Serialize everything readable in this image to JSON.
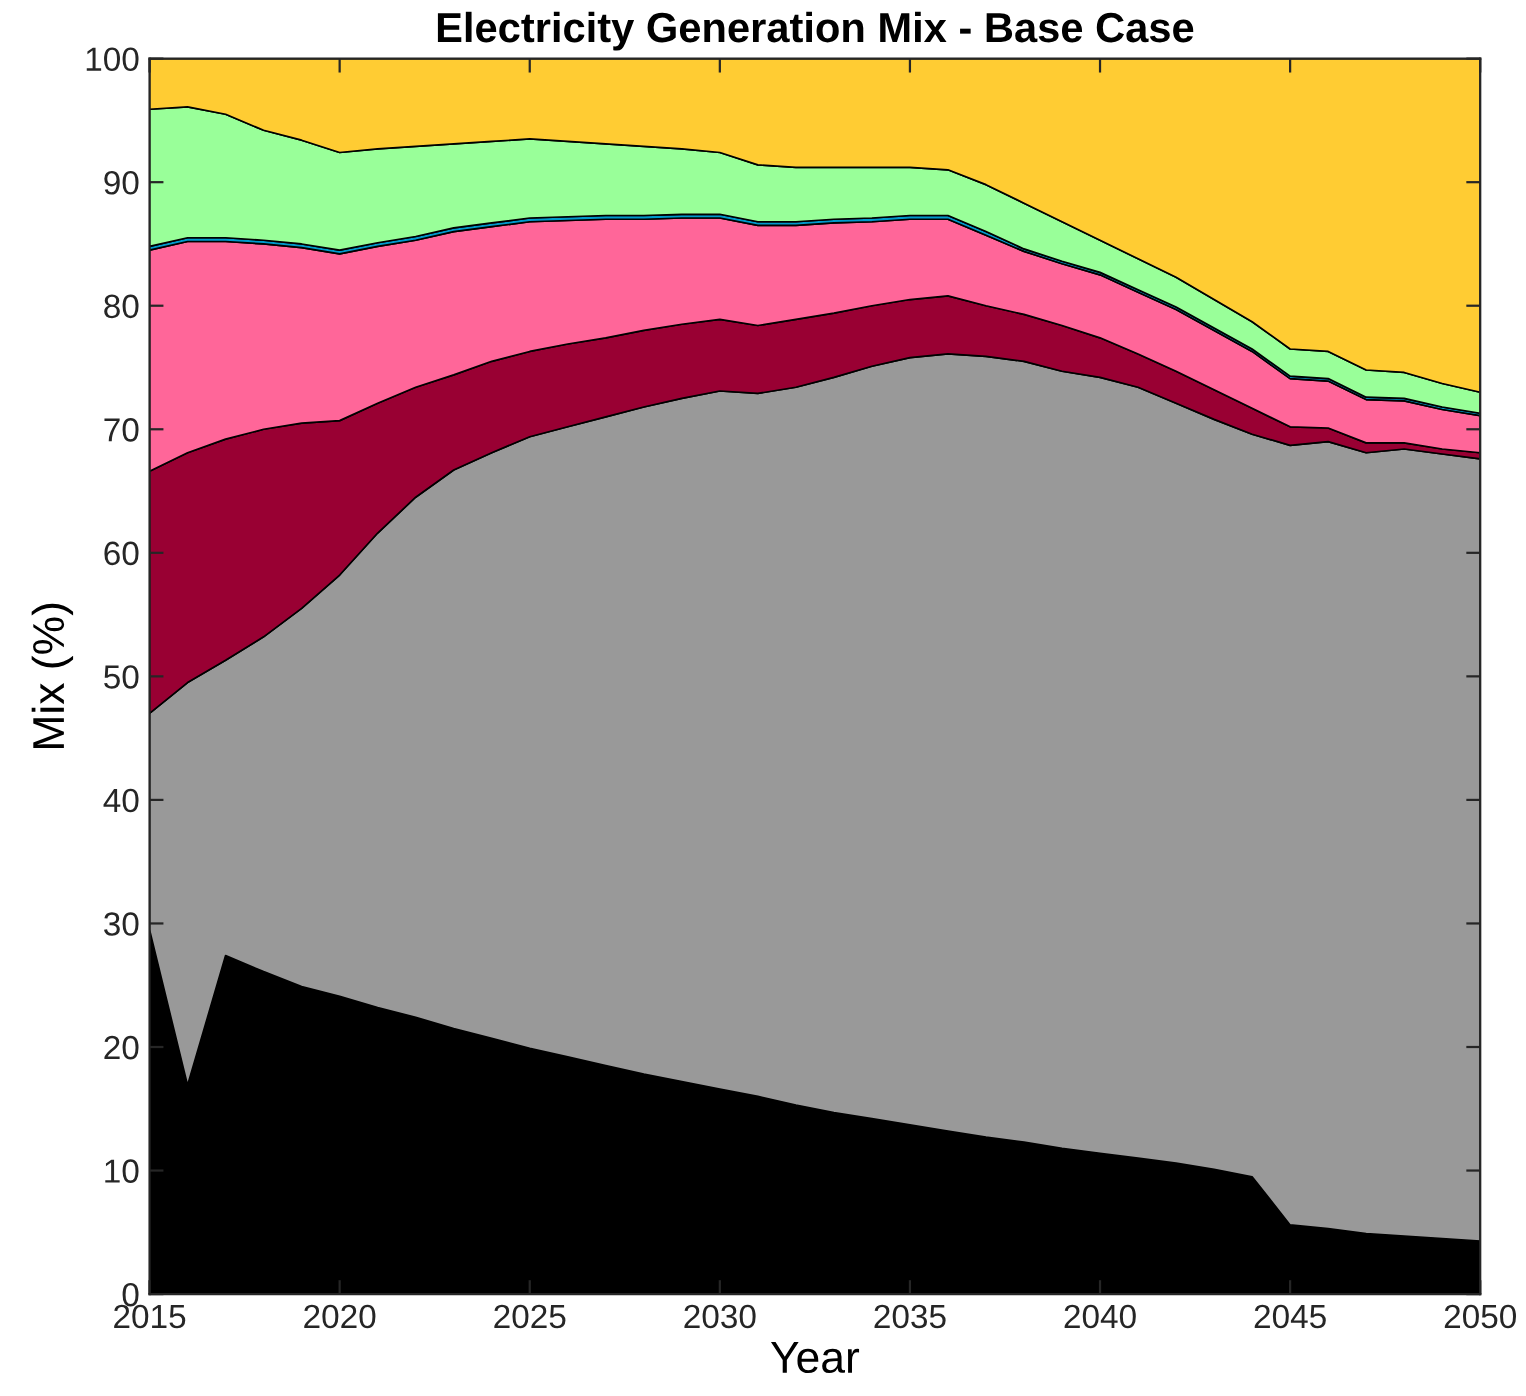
{
  "chart_data": {
    "type": "area",
    "stacked": true,
    "title": "Electricity Generation Mix - Base Case",
    "xlabel": "Year",
    "ylabel": "Mix (%)",
    "x": [
      2015,
      2016,
      2017,
      2018,
      2019,
      2020,
      2021,
      2022,
      2023,
      2024,
      2025,
      2026,
      2027,
      2028,
      2029,
      2030,
      2031,
      2032,
      2033,
      2034,
      2035,
      2036,
      2037,
      2038,
      2039,
      2040,
      2041,
      2042,
      2043,
      2044,
      2045,
      2046,
      2047,
      2048,
      2049,
      2050
    ],
    "xlim": [
      2015,
      2050
    ],
    "xticks": [
      2015,
      2020,
      2025,
      2030,
      2035,
      2040,
      2045,
      2050
    ],
    "ylim": [
      0,
      100
    ],
    "yticks": [
      0,
      10,
      20,
      30,
      40,
      50,
      60,
      70,
      80,
      90,
      100
    ],
    "grid": false,
    "legend": false,
    "series": [
      {
        "color": "#000000",
        "values": [
          29.5,
          16.9,
          27.4,
          26.1,
          24.9,
          24.1,
          23.2,
          22.4,
          21.5,
          20.7,
          19.9,
          19.2,
          18.5,
          17.8,
          17.2,
          16.6,
          16.0,
          15.3,
          14.7,
          14.2,
          13.7,
          13.2,
          12.7,
          12.3,
          11.8,
          11.4,
          11.0,
          10.6,
          10.1,
          9.5,
          5.6,
          5.3,
          4.9,
          4.7,
          4.5,
          4.3
        ]
      },
      {
        "color": "#999999",
        "values": [
          17.5,
          32.6,
          23.9,
          27.1,
          30.6,
          34.1,
          38.4,
          42.1,
          45.2,
          47.4,
          49.5,
          51.0,
          52.5,
          54.0,
          55.3,
          56.5,
          56.9,
          58.1,
          59.5,
          60.9,
          62.1,
          62.9,
          63.2,
          63.2,
          62.9,
          62.8,
          62.4,
          61.5,
          60.7,
          60.1,
          63.1,
          63.7,
          63.2,
          63.7,
          63.5,
          63.3
        ]
      },
      {
        "color": "#990033",
        "values": [
          19.6,
          18.6,
          17.9,
          16.8,
          15.0,
          12.5,
          10.5,
          8.9,
          7.7,
          7.4,
          6.9,
          6.7,
          6.4,
          6.2,
          6.0,
          5.8,
          5.5,
          5.5,
          5.2,
          4.9,
          4.7,
          4.7,
          4.1,
          3.8,
          3.7,
          3.2,
          2.7,
          2.6,
          2.4,
          2.1,
          1.5,
          1.1,
          0.8,
          0.5,
          0.4,
          0.5
        ]
      },
      {
        "color": "#ff6699",
        "values": [
          17.9,
          17.1,
          16.0,
          15.0,
          14.2,
          13.5,
          12.7,
          11.9,
          11.6,
          10.9,
          10.5,
          10.0,
          9.6,
          9.0,
          8.6,
          8.2,
          8.1,
          7.6,
          7.3,
          6.8,
          6.5,
          6.2,
          5.7,
          5.1,
          5.0,
          5.1,
          5.0,
          5.0,
          4.8,
          4.6,
          3.9,
          3.8,
          3.5,
          3.4,
          3.2,
          3.0
        ]
      },
      {
        "color": "#0099cc",
        "values": [
          0.3,
          0.3,
          0.3,
          0.3,
          0.3,
          0.3,
          0.3,
          0.3,
          0.3,
          0.3,
          0.3,
          0.3,
          0.3,
          0.3,
          0.3,
          0.3,
          0.3,
          0.3,
          0.3,
          0.3,
          0.3,
          0.3,
          0.3,
          0.2,
          0.2,
          0.2,
          0.2,
          0.2,
          0.2,
          0.2,
          0.2,
          0.2,
          0.2,
          0.2,
          0.2,
          0.2
        ]
      },
      {
        "color": "#99ff99",
        "values": [
          11.1,
          10.6,
          10.0,
          8.9,
          8.4,
          7.9,
          7.6,
          7.3,
          6.8,
          6.6,
          6.4,
          6.1,
          5.8,
          5.6,
          5.3,
          5.0,
          4.6,
          4.4,
          4.2,
          4.1,
          3.9,
          3.7,
          3.8,
          3.7,
          3.2,
          2.6,
          2.5,
          2.4,
          2.3,
          2.2,
          2.2,
          2.2,
          2.2,
          2.1,
          1.9,
          1.7
        ]
      },
      {
        "color": "#ffcc33",
        "values": [
          4.1,
          3.9,
          4.5,
          5.8,
          6.6,
          7.6,
          7.3,
          7.1,
          6.9,
          6.7,
          6.5,
          6.7,
          6.9,
          7.1,
          7.3,
          7.6,
          8.6,
          8.8,
          8.8,
          8.8,
          8.8,
          9.0,
          10.2,
          11.7,
          13.2,
          14.7,
          16.2,
          17.7,
          19.5,
          21.3,
          23.5,
          23.7,
          25.2,
          25.4,
          26.3,
          27.0
        ]
      }
    ]
  }
}
